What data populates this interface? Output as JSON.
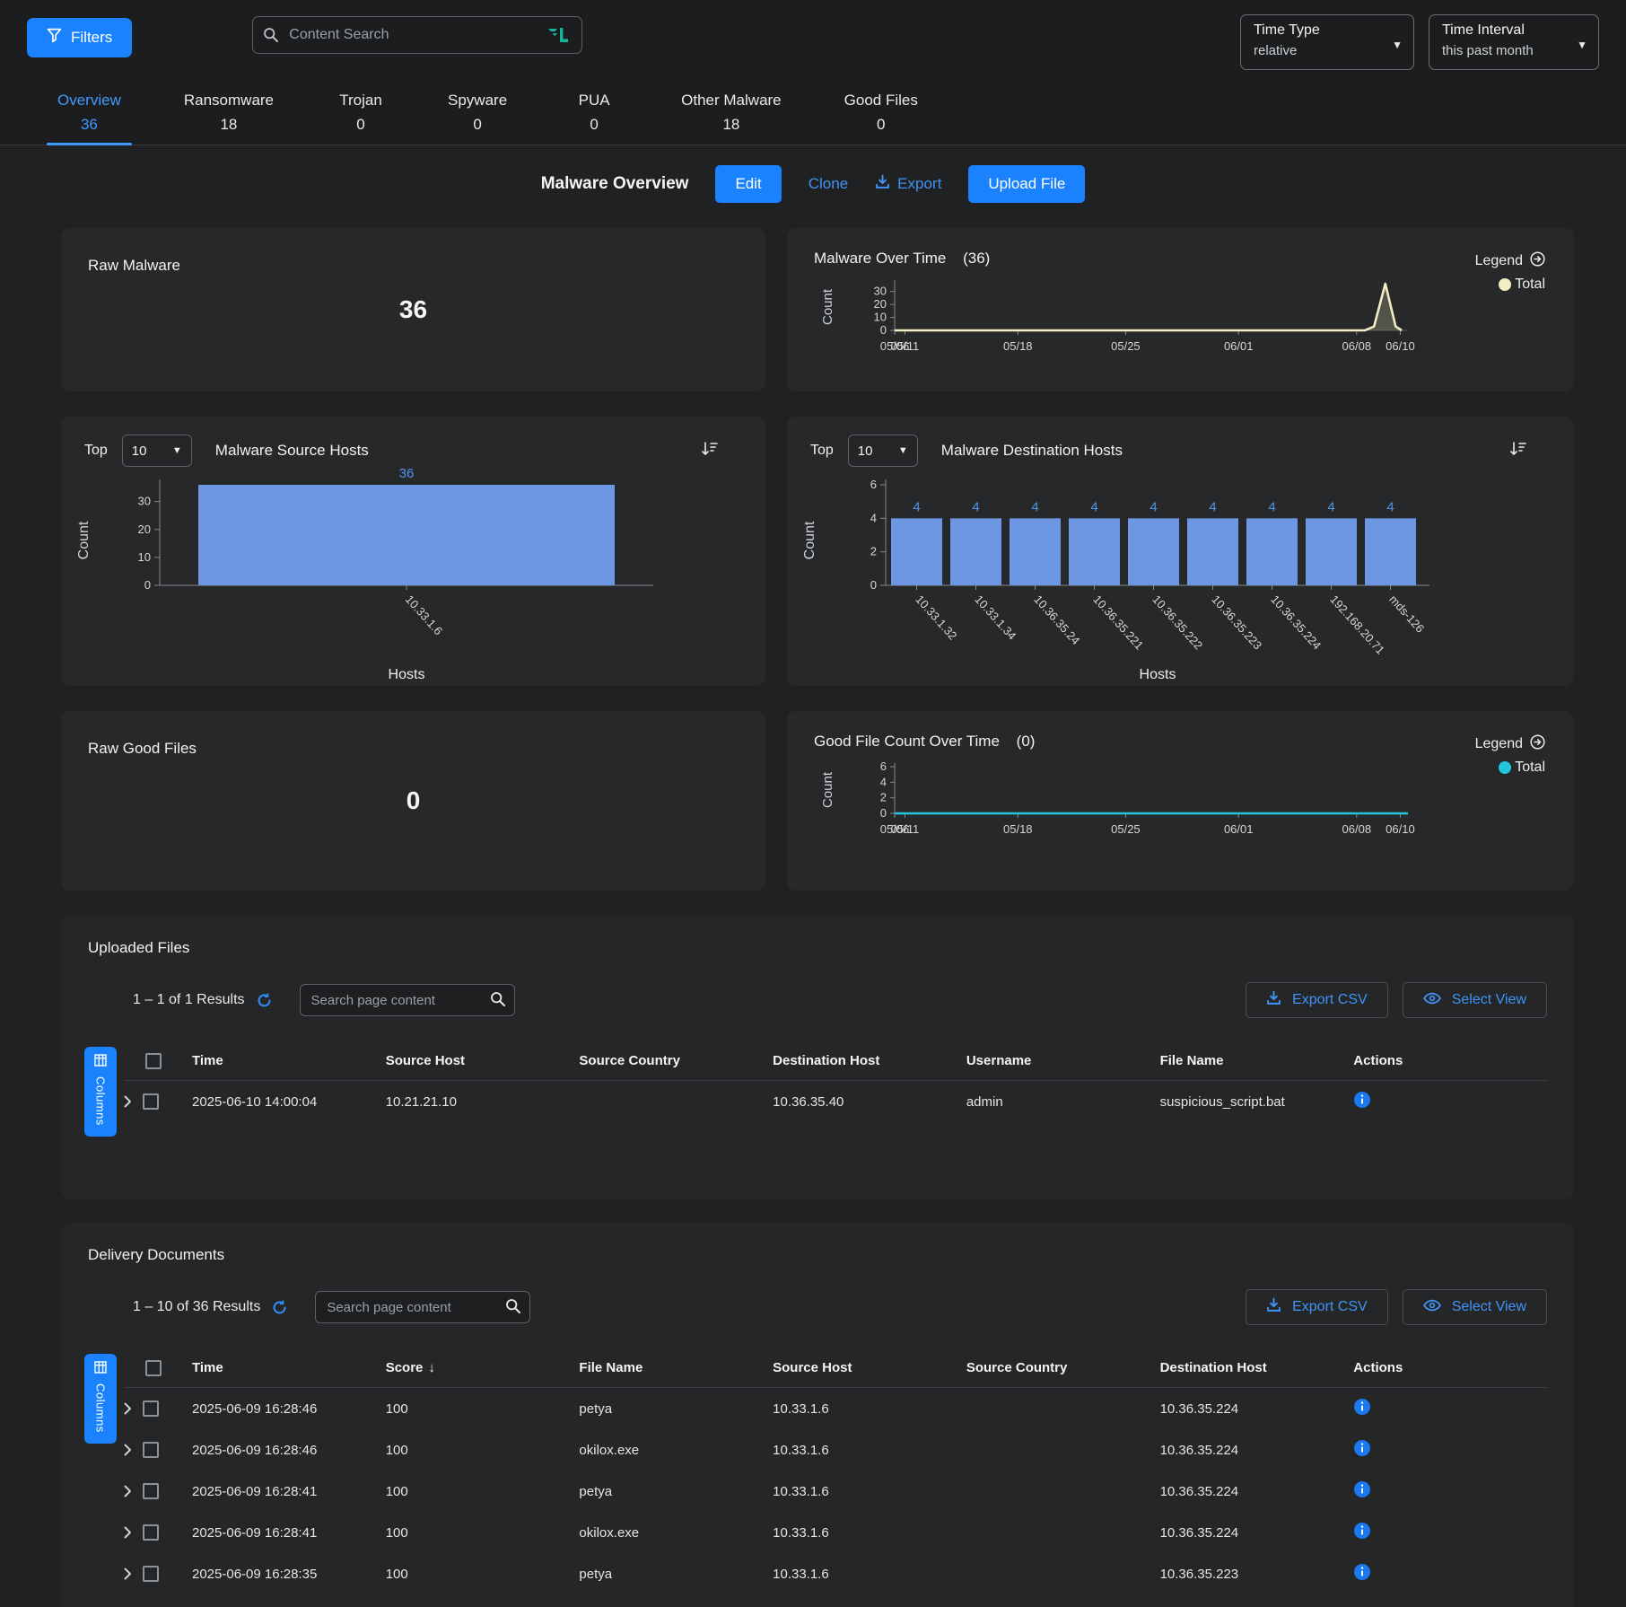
{
  "topbar": {
    "filters_label": "Filters",
    "search_placeholder": "Content Search",
    "time_type": {
      "label": "Time Type",
      "value": "relative"
    },
    "time_interval": {
      "label": "Time Interval",
      "value": "this past month"
    }
  },
  "tabs": [
    {
      "label": "Overview",
      "count": "36",
      "active": true
    },
    {
      "label": "Ransomware",
      "count": "18",
      "active": false
    },
    {
      "label": "Trojan",
      "count": "0",
      "active": false
    },
    {
      "label": "Spyware",
      "count": "0",
      "active": false
    },
    {
      "label": "PUA",
      "count": "0",
      "active": false
    },
    {
      "label": "Other Malware",
      "count": "18",
      "active": false
    },
    {
      "label": "Good Files",
      "count": "0",
      "active": false
    }
  ],
  "toolbar": {
    "title": "Malware Overview",
    "edit_label": "Edit",
    "clone_label": "Clone",
    "export_label": "Export",
    "upload_label": "Upload File"
  },
  "colors": {
    "accent_blue": "#1a82fd",
    "link_blue": "#3f94f6",
    "bar_blue": "#6d97e3",
    "bar_label_blue": "#4f96e8",
    "cream": "#f2edc2",
    "cyan": "#22c6dc"
  },
  "cards": {
    "raw_malware": {
      "title": "Raw Malware",
      "value": "36"
    },
    "raw_good_files": {
      "title": "Raw Good Files",
      "value": "0"
    },
    "malware_over_time": {
      "title": "Malware Over Time",
      "count": "(36)",
      "legend_label": "Legend",
      "legend_series": "Total"
    },
    "good_file_over_time": {
      "title": "Good File Count Over Time",
      "count": "(0)",
      "legend_label": "Legend",
      "legend_series": "Total"
    },
    "source_hosts": {
      "top_label": "Top",
      "top_value": "10",
      "title": "Malware Source Hosts"
    },
    "dest_hosts": {
      "top_label": "Top",
      "top_value": "10",
      "title": "Malware Destination Hosts"
    }
  },
  "chart_data": [
    {
      "id": "malware-over-time",
      "type": "area",
      "title": "Malware Over Time",
      "total": 36,
      "ylabel": "Count",
      "color": "#f2edc2",
      "ylim": [
        0,
        36
      ],
      "yticks": [
        0,
        10,
        20,
        30
      ],
      "grid": false,
      "legend_position": "top-right",
      "xticks": [
        {
          "label": "05/06",
          "f": 0.0
        },
        {
          "label": "05/11",
          "f": 0.02
        },
        {
          "label": "05/18",
          "f": 0.24
        },
        {
          "label": "05/25",
          "f": 0.45
        },
        {
          "label": "06/01",
          "f": 0.67
        },
        {
          "label": "06/08",
          "f": 0.9
        },
        {
          "label": "06/10",
          "f": 0.985
        }
      ],
      "points": [
        [
          0,
          0
        ],
        [
          0.916,
          0
        ],
        [
          0.934,
          3
        ],
        [
          0.956,
          36
        ],
        [
          0.976,
          3
        ],
        [
          0.988,
          0
        ]
      ]
    },
    {
      "id": "good-file-over-time",
      "type": "line",
      "title": "Good File Count Over Time",
      "total": 0,
      "ylabel": "Count",
      "color": "#22c6dc",
      "ylim": [
        0,
        6
      ],
      "yticks": [
        0,
        2,
        4,
        6
      ],
      "grid": false,
      "legend_position": "top-right",
      "xticks": [
        {
          "label": "05/06",
          "f": 0.0
        },
        {
          "label": "05/11",
          "f": 0.02
        },
        {
          "label": "05/18",
          "f": 0.24
        },
        {
          "label": "05/25",
          "f": 0.45
        },
        {
          "label": "06/01",
          "f": 0.67
        },
        {
          "label": "06/08",
          "f": 0.9
        },
        {
          "label": "06/10",
          "f": 0.985
        }
      ],
      "points": [
        [
          0,
          0
        ],
        [
          1,
          0
        ]
      ]
    },
    {
      "id": "source-hosts",
      "type": "bar",
      "title": "Malware Source Hosts",
      "categories": [
        "10.33.1.6"
      ],
      "values": [
        36
      ],
      "xlabel": "Hosts",
      "ylabel": "Count",
      "ylim": [
        0,
        36
      ],
      "yticks": [
        0,
        10,
        20,
        30
      ]
    },
    {
      "id": "dest-hosts",
      "type": "bar",
      "title": "Malware Destination Hosts",
      "categories": [
        "10.33.1.32",
        "10.33.1.34",
        "10.36.35.24",
        "10.36.35.221",
        "10.36.35.222",
        "10.36.35.223",
        "10.36.35.224",
        "192.168.20.71",
        "mds-126"
      ],
      "values": [
        4,
        4,
        4,
        4,
        4,
        4,
        4,
        4,
        4
      ],
      "xlabel": "Hosts",
      "ylabel": "Count",
      "ylim": [
        0,
        6
      ],
      "yticks": [
        0,
        2,
        4,
        6
      ]
    }
  ],
  "uploaded_files": {
    "title": "Uploaded Files",
    "results": "1 – 1 of 1 Results",
    "search_placeholder": "Search page content",
    "export_csv_label": "Export CSV",
    "select_view_label": "Select View",
    "columns_tab_label": "Columns",
    "columns": [
      "Time",
      "Source Host",
      "Source Country",
      "Destination Host",
      "Username",
      "File Name",
      "Actions"
    ],
    "rows": [
      [
        "2025-06-10 14:00:04",
        "10.21.21.10",
        "",
        "10.36.35.40",
        "admin",
        "suspicious_script.bat"
      ]
    ]
  },
  "delivery_documents": {
    "title": "Delivery Documents",
    "results": "1 – 10 of 36 Results",
    "search_placeholder": "Search page content",
    "export_csv_label": "Export CSV",
    "select_view_label": "Select View",
    "columns_tab_label": "Columns",
    "columns": [
      "Time",
      "Score",
      "File Name",
      "Source Host",
      "Source Country",
      "Destination Host",
      "Actions"
    ],
    "sorted_column": "Score",
    "sort_direction": "desc",
    "rows": [
      [
        "2025-06-09 16:28:46",
        "100",
        "petya",
        "10.33.1.6",
        "",
        "10.36.35.224"
      ],
      [
        "2025-06-09 16:28:46",
        "100",
        "okilox.exe",
        "10.33.1.6",
        "",
        "10.36.35.224"
      ],
      [
        "2025-06-09 16:28:41",
        "100",
        "petya",
        "10.33.1.6",
        "",
        "10.36.35.224"
      ],
      [
        "2025-06-09 16:28:41",
        "100",
        "okilox.exe",
        "10.33.1.6",
        "",
        "10.36.35.224"
      ],
      [
        "2025-06-09 16:28:35",
        "100",
        "petya",
        "10.33.1.6",
        "",
        "10.36.35.223"
      ]
    ]
  }
}
